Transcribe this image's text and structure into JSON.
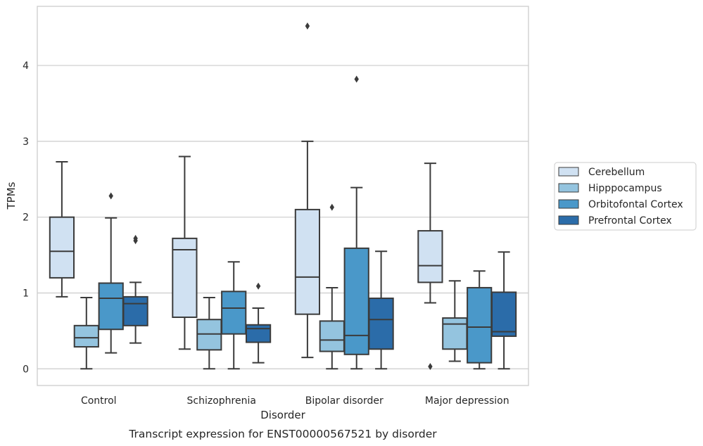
{
  "chart_data": {
    "type": "box",
    "title": "",
    "caption": "Transcript expression for ENST00000567521 by disorder",
    "xlabel": "Disorder",
    "ylabel": "TPMs",
    "ylim": [
      -0.22,
      4.78
    ],
    "yticks": [
      0,
      1,
      2,
      3,
      4
    ],
    "grid": "horizontal",
    "legend_position": "right",
    "categories": [
      "Control",
      "Schizophrenia",
      "Bipolar disorder",
      "Major depression"
    ],
    "series": [
      {
        "name": "Cerebellum",
        "color": "#d0e1f2",
        "boxes": [
          {
            "whisker_low": 0.95,
            "q1": 1.2,
            "median": 1.55,
            "q3": 2.0,
            "whisker_high": 2.73,
            "outliers": []
          },
          {
            "whisker_low": 0.26,
            "q1": 0.68,
            "median": 1.57,
            "q3": 1.72,
            "whisker_high": 2.8,
            "outliers": []
          },
          {
            "whisker_low": 0.15,
            "q1": 0.72,
            "median": 1.21,
            "q3": 2.1,
            "whisker_high": 3.0,
            "outliers": [
              4.52
            ]
          },
          {
            "whisker_low": 0.87,
            "q1": 1.14,
            "median": 1.36,
            "q3": 1.82,
            "whisker_high": 2.71,
            "outliers": [
              0.03
            ]
          }
        ]
      },
      {
        "name": "Hipppocampus",
        "color": "#94c4df",
        "boxes": [
          {
            "whisker_low": 0.0,
            "q1": 0.29,
            "median": 0.41,
            "q3": 0.57,
            "whisker_high": 0.94,
            "outliers": []
          },
          {
            "whisker_low": 0.0,
            "q1": 0.25,
            "median": 0.46,
            "q3": 0.65,
            "whisker_high": 0.94,
            "outliers": []
          },
          {
            "whisker_low": 0.0,
            "q1": 0.23,
            "median": 0.38,
            "q3": 0.63,
            "whisker_high": 1.07,
            "outliers": [
              2.13
            ]
          },
          {
            "whisker_low": 0.1,
            "q1": 0.26,
            "median": 0.59,
            "q3": 0.67,
            "whisker_high": 1.16,
            "outliers": []
          }
        ]
      },
      {
        "name": "Orbitofontal Cortex",
        "color": "#4a98c9",
        "boxes": [
          {
            "whisker_low": 0.21,
            "q1": 0.52,
            "median": 0.93,
            "q3": 1.13,
            "whisker_high": 1.99,
            "outliers": [
              2.28
            ]
          },
          {
            "whisker_low": 0.0,
            "q1": 0.46,
            "median": 0.8,
            "q3": 1.02,
            "whisker_high": 1.41,
            "outliers": []
          },
          {
            "whisker_low": 0.0,
            "q1": 0.19,
            "median": 0.44,
            "q3": 1.59,
            "whisker_high": 2.39,
            "outliers": [
              3.82
            ]
          },
          {
            "whisker_low": 0.0,
            "q1": 0.08,
            "median": 0.55,
            "q3": 1.07,
            "whisker_high": 1.29,
            "outliers": []
          }
        ]
      },
      {
        "name": "Prefrontal Cortex",
        "color": "#2b6ca9",
        "boxes": [
          {
            "whisker_low": 0.34,
            "q1": 0.57,
            "median": 0.86,
            "q3": 0.95,
            "whisker_high": 1.14,
            "outliers": [
              1.69,
              1.72
            ]
          },
          {
            "whisker_low": 0.08,
            "q1": 0.35,
            "median": 0.53,
            "q3": 0.58,
            "whisker_high": 0.8,
            "outliers": [
              1.09
            ]
          },
          {
            "whisker_low": 0.0,
            "q1": 0.26,
            "median": 0.65,
            "q3": 0.93,
            "whisker_high": 1.55,
            "outliers": []
          },
          {
            "whisker_low": 0.0,
            "q1": 0.43,
            "median": 0.49,
            "q3": 1.01,
            "whisker_high": 1.54,
            "outliers": []
          }
        ]
      }
    ]
  }
}
